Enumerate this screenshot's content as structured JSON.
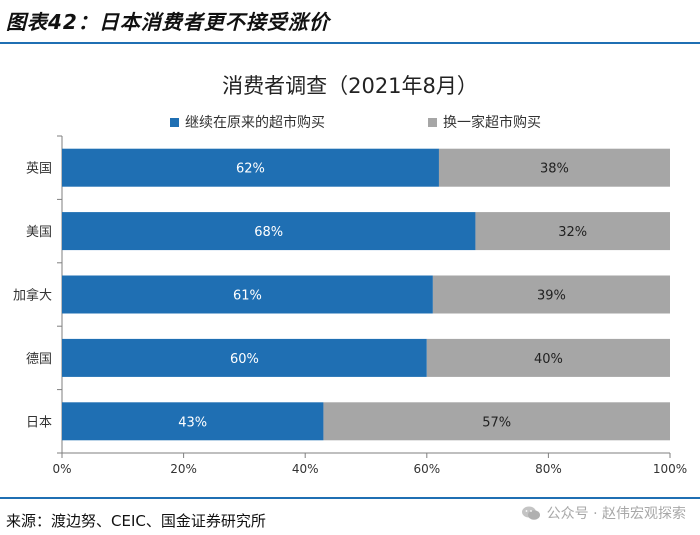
{
  "figure": {
    "title": "图表42：日本消费者更不接受涨价",
    "source": "来源：渡边努、CEIC、国金证券研究所",
    "watermark": "公众号 · 赵伟宏观探索"
  },
  "colors": {
    "series1": "#1f6fb3",
    "series2": "#a6a6a6",
    "rule": "#1f6fb3"
  },
  "chart_data": {
    "type": "bar",
    "orientation": "horizontal",
    "stacked": true,
    "title": "消费者调查（2021年8月）",
    "categories": [
      "英国",
      "美国",
      "加拿大",
      "德国",
      "日本"
    ],
    "series": [
      {
        "name": "继续在原来的超市购买",
        "values": [
          62,
          68,
          61,
          60,
          43
        ]
      },
      {
        "name": "换一家超市购买",
        "values": [
          38,
          32,
          39,
          40,
          57
        ]
      }
    ],
    "value_format": "{v}%",
    "xlim": [
      0,
      100
    ],
    "xticks": [
      0,
      20,
      40,
      60,
      80,
      100
    ],
    "xtick_format": "{v}%",
    "xlabel": "",
    "ylabel": "",
    "legend_position": "top",
    "grid": false
  }
}
